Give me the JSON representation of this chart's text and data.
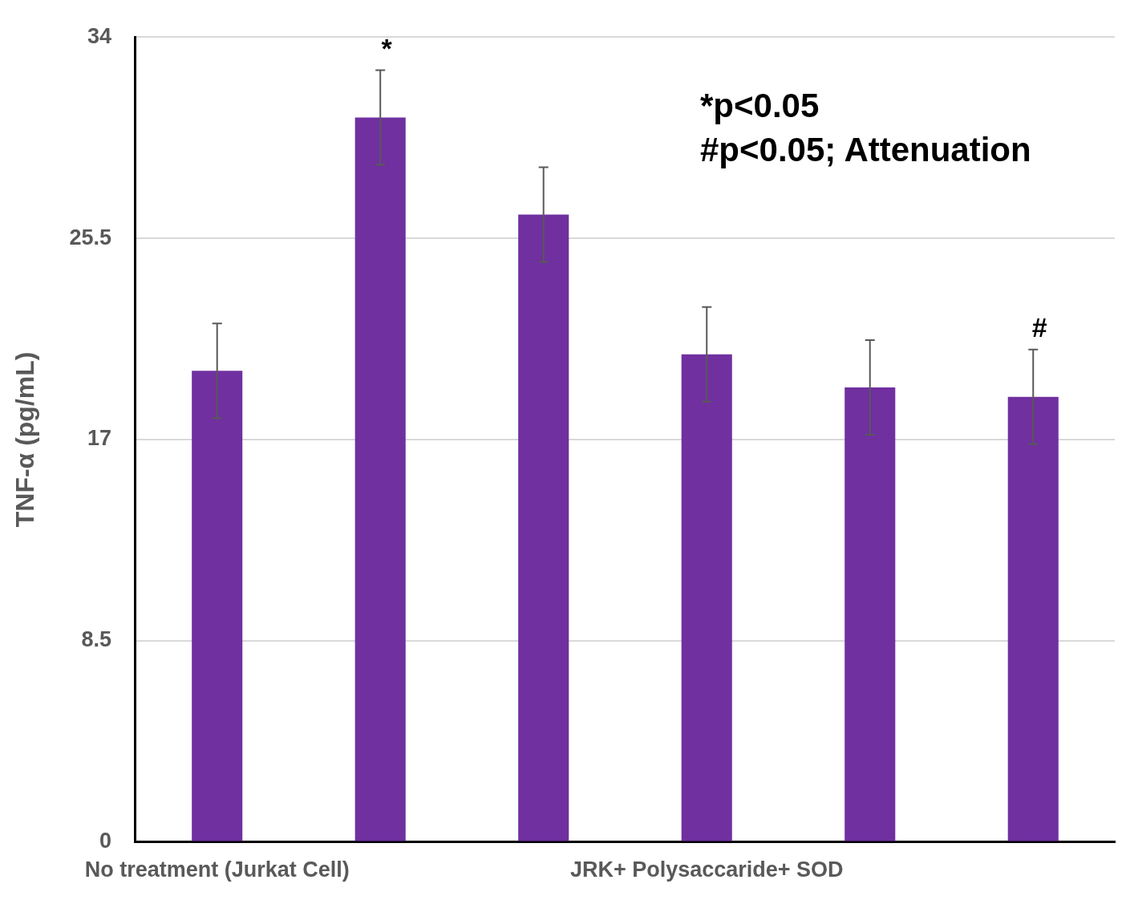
{
  "chart_data": {
    "type": "bar",
    "ylabel": "TNF-α (pg/mL)",
    "categories": [
      "No treatment (Jurkat Cell)",
      null,
      null,
      "JRK+ Polysaccaride+ SOD",
      null,
      null
    ],
    "values": [
      19.9,
      30.6,
      26.5,
      20.6,
      19.2,
      18.8
    ],
    "errors": [
      2,
      2,
      2,
      2,
      2,
      2
    ],
    "value_labels": [
      null,
      "*",
      null,
      null,
      null,
      "#"
    ],
    "color": "#7030a0",
    "ylim": [
      0,
      34
    ],
    "yticks": [
      0,
      8.5,
      17,
      25.5,
      34
    ],
    "grid": "y",
    "legend": false,
    "annotations": [
      "*p<0.05",
      "#p<0.05; Attenuation"
    ]
  }
}
